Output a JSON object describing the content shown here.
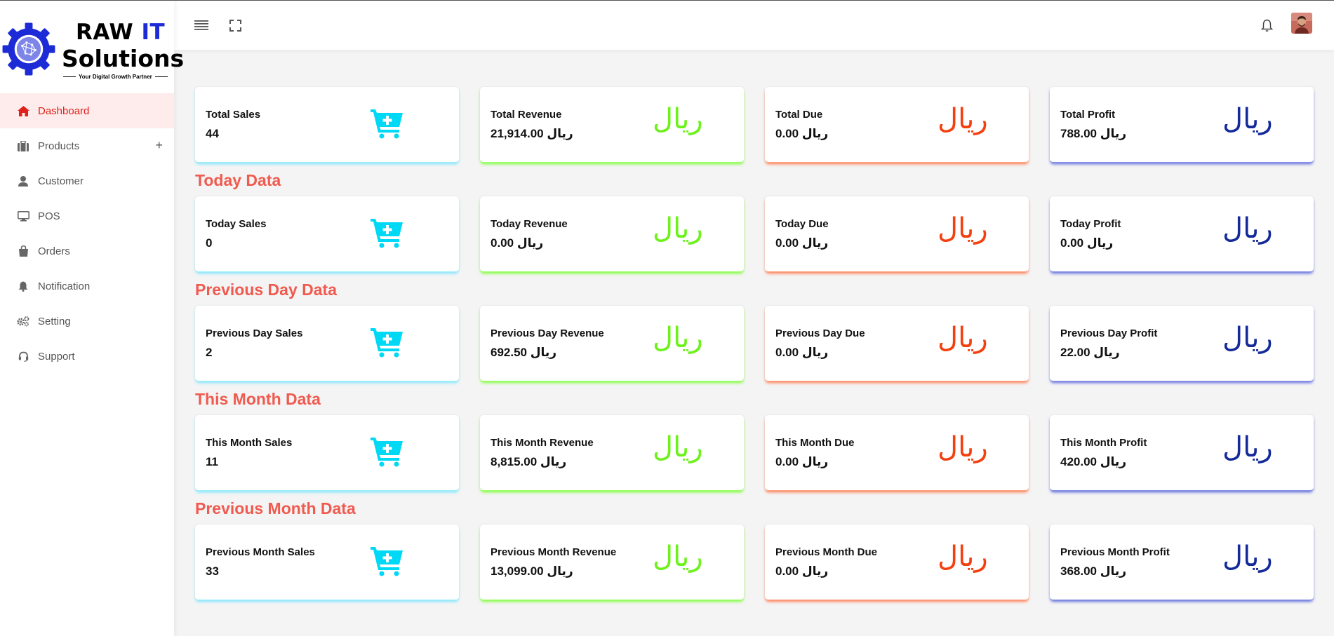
{
  "brand": {
    "line1": "RAW ",
    "line1_accent": "IT",
    "line2": "Solutions",
    "tagline": "Your Digital Growth Partner"
  },
  "sidebar": {
    "items": [
      {
        "label": "Dashboard",
        "icon": "home-icon",
        "active": true
      },
      {
        "label": "Products",
        "icon": "briefcase-icon",
        "expand": "+"
      },
      {
        "label": "Customer",
        "icon": "user-icon"
      },
      {
        "label": "POS",
        "icon": "monitor-icon"
      },
      {
        "label": "Orders",
        "icon": "bag-icon"
      },
      {
        "label": "Notification",
        "icon": "bell-icon"
      },
      {
        "label": "Setting",
        "icon": "gears-icon"
      },
      {
        "label": "Support",
        "icon": "headset-icon"
      }
    ]
  },
  "header": {
    "icons": [
      "menu-icon",
      "fullscreen-icon",
      "bell-icon",
      "avatar"
    ]
  },
  "currency": "ريال",
  "colors": {
    "accent": "#e0211b",
    "section_title": "#f05a4f",
    "cart": "#00d9f5",
    "revenue": "#6cf21a",
    "due": "#f43f0f",
    "profit": "#142a9a"
  },
  "sections": [
    {
      "title": "",
      "cards": [
        {
          "label": "Total Sales",
          "value": "44",
          "kind": "cart"
        },
        {
          "label": "Total Revenue",
          "value": "21,914.00 ريال",
          "kind": "rial"
        },
        {
          "label": "Total Due",
          "value": "0.00 ريال",
          "kind": "rial"
        },
        {
          "label": "Total Profit",
          "value": "788.00 ريال",
          "kind": "rial"
        }
      ]
    },
    {
      "title": "Today Data",
      "cards": [
        {
          "label": "Today Sales",
          "value": "0",
          "kind": "cart"
        },
        {
          "label": "Today Revenue",
          "value": "0.00 ريال",
          "kind": "rial"
        },
        {
          "label": "Today Due",
          "value": "0.00 ريال",
          "kind": "rial"
        },
        {
          "label": "Today Profit",
          "value": "0.00 ريال",
          "kind": "rial"
        }
      ]
    },
    {
      "title": "Previous Day Data",
      "cards": [
        {
          "label": "Previous Day Sales",
          "value": "2",
          "kind": "cart"
        },
        {
          "label": "Previous Day Revenue",
          "value": "692.50 ريال",
          "kind": "rial"
        },
        {
          "label": "Previous Day Due",
          "value": "0.00 ريال",
          "kind": "rial"
        },
        {
          "label": "Previous Day Profit",
          "value": "22.00 ريال",
          "kind": "rial"
        }
      ]
    },
    {
      "title": "This Month Data",
      "cards": [
        {
          "label": "This Month Sales",
          "value": "11",
          "kind": "cart"
        },
        {
          "label": "This Month Revenue",
          "value": "8,815.00 ريال",
          "kind": "rial"
        },
        {
          "label": "This Month Due",
          "value": "0.00 ريال",
          "kind": "rial"
        },
        {
          "label": "This Month Profit",
          "value": "420.00 ريال",
          "kind": "rial"
        }
      ]
    },
    {
      "title": "Previous Month Data",
      "cards": [
        {
          "label": "Previous Month Sales",
          "value": "33",
          "kind": "cart"
        },
        {
          "label": "Previous Month Revenue",
          "value": "13,099.00 ريال",
          "kind": "rial"
        },
        {
          "label": "Previous Month Due",
          "value": "0.00 ريال",
          "kind": "rial"
        },
        {
          "label": "Previous Month Profit",
          "value": "368.00 ريال",
          "kind": "rial"
        }
      ]
    }
  ]
}
